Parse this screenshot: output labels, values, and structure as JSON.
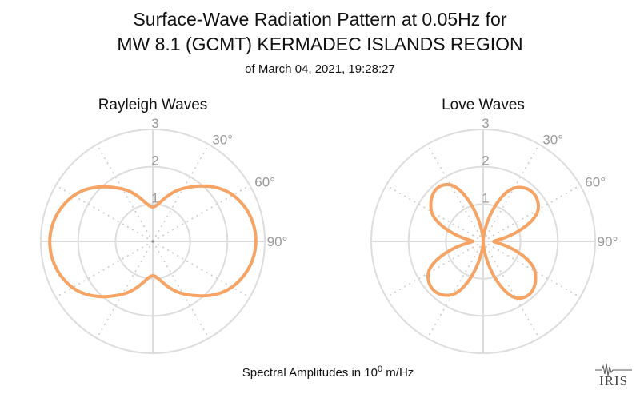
{
  "title_line1": "Surface-Wave Radiation Pattern at 0.05Hz for",
  "title_line2": "MW 8.1 (GCMT) KERMADEC ISLANDS REGION",
  "subtitle": "of March 04, 2021, 19:28:27",
  "footer": {
    "prefix": "Spectral Amplitudes in 10",
    "exponent": "0",
    "suffix": " m/Hz"
  },
  "logo": {
    "text": "IRIS"
  },
  "colors": {
    "pattern": "#f6a466",
    "grid": "#dddddd",
    "spokes": "#cccccc",
    "labels": "#9a9a9a"
  },
  "chart_data": [
    {
      "type": "polar-line",
      "title": "Rayleigh Waves",
      "r_ticks": [
        "1",
        "2",
        "3"
      ],
      "r_max": 3,
      "angle_labels": [
        "30°",
        "60°",
        "90°"
      ],
      "grid_angle_step_deg": 30,
      "series": [
        {
          "values_deg_r": [
            [
              0,
              0.92
            ],
            [
              30,
              1.64
            ],
            [
              60,
              2.48
            ],
            [
              90,
              2.76
            ],
            [
              120,
              2.45
            ],
            [
              150,
              1.62
            ],
            [
              180,
              0.92
            ],
            [
              210,
              1.64
            ],
            [
              240,
              2.48
            ],
            [
              270,
              2.76
            ],
            [
              300,
              2.45
            ],
            [
              330,
              1.62
            ]
          ]
        }
      ]
    },
    {
      "type": "polar-line",
      "title": "Love Waves",
      "r_ticks": [
        "1",
        "2",
        "3"
      ],
      "r_max": 3,
      "angle_labels": [
        "30°",
        "60°",
        "90°"
      ],
      "grid_angle_step_deg": 30,
      "series": [
        {
          "values_deg_r": [
            [
              0,
              0.03
            ],
            [
              30,
              1.65
            ],
            [
              60,
              1.7
            ],
            [
              90,
              0.28
            ],
            [
              120,
              1.6
            ],
            [
              150,
              1.75
            ],
            [
              180,
              0.03
            ],
            [
              210,
              1.65
            ],
            [
              240,
              1.7
            ],
            [
              270,
              0.28
            ],
            [
              300,
              1.6
            ],
            [
              330,
              1.75
            ]
          ]
        }
      ]
    }
  ]
}
